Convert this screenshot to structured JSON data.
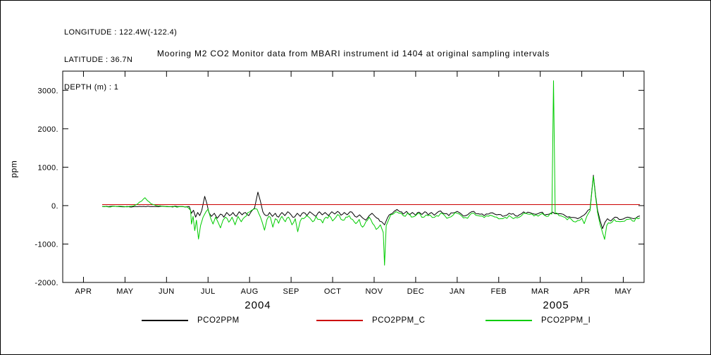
{
  "header": {
    "longitude": "LONGITUDE : 122.4W(-122.4)",
    "latitude": "LATITUDE : 36.7N",
    "depth": "DEPTH (m) : 1"
  },
  "title": "Mooring M2 CO2 Monitor data from MBARI instrument id 1404 at original sampling intervals",
  "chart_data": {
    "type": "line",
    "title": "Mooring M2 CO2 Monitor data from MBARI instrument id 1404 at original sampling intervals",
    "xlabel": "",
    "ylabel": "ppm",
    "ylim": [
      -2000,
      3500
    ],
    "xlim_months": [
      0,
      14
    ],
    "grid": false,
    "axis_color": "#000000",
    "y_ticks": [
      3000,
      2000,
      1000,
      0,
      -1000,
      -2000
    ],
    "y_tick_labels": [
      "3000.",
      "2000.",
      "1000.",
      "0.",
      "-1000.",
      "-2000."
    ],
    "x_tick_labels": [
      "APR",
      "MAY",
      "JUN",
      "JUL",
      "AUG",
      "SEP",
      "OCT",
      "NOV",
      "DEC",
      "JAN",
      "FEB",
      "MAR",
      "APR",
      "MAY"
    ],
    "year_labels": [
      {
        "text": "2004",
        "month_index": 4.7
      },
      {
        "text": "2005",
        "month_index": 11.88
      }
    ],
    "legend_position": "bottom",
    "jitter": {
      "split_t": 3.05,
      "pre_amp": 12,
      "amps": [
        35,
        0,
        50
      ]
    },
    "series": [
      {
        "name": "PCO2PPM",
        "color": "#000000",
        "points": [
          [
            0.95,
            -20
          ],
          [
            1.1,
            -28
          ],
          [
            1.25,
            -18
          ],
          [
            1.4,
            -30
          ],
          [
            1.55,
            -22
          ],
          [
            1.7,
            -30
          ],
          [
            1.85,
            -20
          ],
          [
            2.0,
            -28
          ],
          [
            2.15,
            -22
          ],
          [
            2.3,
            -30
          ],
          [
            2.45,
            -20
          ],
          [
            2.6,
            -28
          ],
          [
            2.75,
            -22
          ],
          [
            2.9,
            -28
          ],
          [
            3.05,
            -25
          ],
          [
            3.1,
            -200
          ],
          [
            3.15,
            -120
          ],
          [
            3.2,
            -300
          ],
          [
            3.25,
            -180
          ],
          [
            3.3,
            -260
          ],
          [
            3.35,
            -120
          ],
          [
            3.42,
            240
          ],
          [
            3.47,
            60
          ],
          [
            3.52,
            -180
          ],
          [
            3.58,
            -280
          ],
          [
            3.65,
            -200
          ],
          [
            3.72,
            -330
          ],
          [
            3.8,
            -220
          ],
          [
            3.88,
            -300
          ],
          [
            3.95,
            -180
          ],
          [
            4.02,
            -260
          ],
          [
            4.1,
            -180
          ],
          [
            4.18,
            -280
          ],
          [
            4.25,
            -160
          ],
          [
            4.32,
            -240
          ],
          [
            4.4,
            -180
          ],
          [
            4.48,
            -260
          ],
          [
            4.55,
            -140
          ],
          [
            4.62,
            -60
          ],
          [
            4.7,
            350
          ],
          [
            4.76,
            120
          ],
          [
            4.82,
            -160
          ],
          [
            4.9,
            -260
          ],
          [
            4.98,
            -180
          ],
          [
            5.05,
            -280
          ],
          [
            5.12,
            -200
          ],
          [
            5.2,
            -300
          ],
          [
            5.28,
            -180
          ],
          [
            5.35,
            -260
          ],
          [
            5.42,
            -160
          ],
          [
            5.5,
            -240
          ],
          [
            5.58,
            -300
          ],
          [
            5.65,
            -200
          ],
          [
            5.72,
            -280
          ],
          [
            5.8,
            -180
          ],
          [
            5.88,
            -260
          ],
          [
            5.95,
            -160
          ],
          [
            6.02,
            -220
          ],
          [
            6.1,
            -280
          ],
          [
            6.18,
            -160
          ],
          [
            6.25,
            -240
          ],
          [
            6.32,
            -180
          ],
          [
            6.4,
            -260
          ],
          [
            6.48,
            -160
          ],
          [
            6.55,
            -220
          ],
          [
            6.62,
            -150
          ],
          [
            6.7,
            -250
          ],
          [
            6.78,
            -180
          ],
          [
            6.85,
            -240
          ],
          [
            6.92,
            -160
          ],
          [
            7.0,
            -220
          ],
          [
            7.08,
            -300
          ],
          [
            7.15,
            -240
          ],
          [
            7.22,
            -320
          ],
          [
            7.3,
            -380
          ],
          [
            7.38,
            -260
          ],
          [
            7.45,
            -200
          ],
          [
            7.52,
            -280
          ],
          [
            7.6,
            -340
          ],
          [
            7.68,
            -420
          ],
          [
            7.75,
            -500
          ],
          [
            7.82,
            -320
          ],
          [
            7.9,
            -220
          ],
          [
            7.98,
            -150
          ],
          [
            8.05,
            -100
          ],
          [
            8.12,
            -160
          ],
          [
            8.2,
            -220
          ],
          [
            8.28,
            -150
          ],
          [
            8.35,
            -240
          ],
          [
            8.42,
            -180
          ],
          [
            8.5,
            -250
          ],
          [
            8.58,
            -170
          ],
          [
            8.65,
            -230
          ],
          [
            8.72,
            -160
          ],
          [
            8.8,
            -240
          ],
          [
            8.88,
            -180
          ],
          [
            8.95,
            -250
          ],
          [
            9.02,
            -180
          ],
          [
            9.1,
            -140
          ],
          [
            9.2,
            -210
          ],
          [
            9.3,
            -260
          ],
          [
            9.4,
            -190
          ],
          [
            9.5,
            -150
          ],
          [
            9.6,
            -220
          ],
          [
            9.7,
            -260
          ],
          [
            9.8,
            -190
          ],
          [
            9.9,
            -150
          ],
          [
            10.0,
            -210
          ],
          [
            10.15,
            -260
          ],
          [
            10.3,
            -190
          ],
          [
            10.45,
            -240
          ],
          [
            10.6,
            -280
          ],
          [
            10.75,
            -200
          ],
          [
            10.9,
            -260
          ],
          [
            11.05,
            -210
          ],
          [
            11.2,
            -170
          ],
          [
            11.35,
            -220
          ],
          [
            11.5,
            -180
          ],
          [
            11.65,
            -230
          ],
          [
            11.8,
            -170
          ],
          [
            11.95,
            -210
          ],
          [
            12.1,
            -260
          ],
          [
            12.25,
            -310
          ],
          [
            12.4,
            -340
          ],
          [
            12.5,
            -280
          ],
          [
            12.6,
            -200
          ],
          [
            12.7,
            -90
          ],
          [
            12.78,
            790
          ],
          [
            12.83,
            280
          ],
          [
            12.88,
            -120
          ],
          [
            12.94,
            -380
          ],
          [
            13.0,
            -600
          ],
          [
            13.06,
            -430
          ],
          [
            13.12,
            -340
          ],
          [
            13.2,
            -400
          ],
          [
            13.3,
            -300
          ],
          [
            13.45,
            -360
          ],
          [
            13.6,
            -300
          ],
          [
            13.75,
            -340
          ],
          [
            13.9,
            -270
          ]
        ]
      },
      {
        "name": "PCO2PPM_C",
        "color": "#cc0000",
        "points": [
          [
            0.95,
            25
          ],
          [
            13.9,
            25
          ]
        ]
      },
      {
        "name": "PCO2PPM_I",
        "color": "#00cc00",
        "points": [
          [
            0.95,
            -25
          ],
          [
            1.1,
            -32
          ],
          [
            1.3,
            -25
          ],
          [
            1.5,
            -28
          ],
          [
            1.65,
            -15
          ],
          [
            1.8,
            40
          ],
          [
            1.9,
            120
          ],
          [
            1.98,
            205
          ],
          [
            2.04,
            130
          ],
          [
            2.12,
            55
          ],
          [
            2.25,
            0
          ],
          [
            2.4,
            -20
          ],
          [
            2.6,
            -28
          ],
          [
            2.8,
            -30
          ],
          [
            3.0,
            -35
          ],
          [
            3.08,
            -120
          ],
          [
            3.1,
            -480
          ],
          [
            3.14,
            -280
          ],
          [
            3.18,
            -650
          ],
          [
            3.22,
            -380
          ],
          [
            3.27,
            -870
          ],
          [
            3.32,
            -520
          ],
          [
            3.38,
            -300
          ],
          [
            3.45,
            -160
          ],
          [
            3.5,
            -90
          ],
          [
            3.56,
            -320
          ],
          [
            3.62,
            -480
          ],
          [
            3.68,
            -300
          ],
          [
            3.74,
            -430
          ],
          [
            3.8,
            -580
          ],
          [
            3.86,
            -380
          ],
          [
            3.92,
            -300
          ],
          [
            4.0,
            -430
          ],
          [
            4.08,
            -300
          ],
          [
            4.15,
            -500
          ],
          [
            4.22,
            -280
          ],
          [
            4.3,
            -420
          ],
          [
            4.38,
            -300
          ],
          [
            4.46,
            -180
          ],
          [
            4.55,
            -120
          ],
          [
            4.64,
            -80
          ],
          [
            4.72,
            -200
          ],
          [
            4.8,
            -420
          ],
          [
            4.86,
            -640
          ],
          [
            4.92,
            -360
          ],
          [
            5.0,
            -300
          ],
          [
            5.06,
            -560
          ],
          [
            5.12,
            -340
          ],
          [
            5.2,
            -460
          ],
          [
            5.28,
            -280
          ],
          [
            5.36,
            -420
          ],
          [
            5.44,
            -300
          ],
          [
            5.52,
            -500
          ],
          [
            5.6,
            -340
          ],
          [
            5.66,
            -680
          ],
          [
            5.72,
            -400
          ],
          [
            5.8,
            -340
          ],
          [
            5.88,
            -260
          ],
          [
            5.95,
            -320
          ],
          [
            6.02,
            -420
          ],
          [
            6.1,
            -280
          ],
          [
            6.18,
            -360
          ],
          [
            6.26,
            -450
          ],
          [
            6.34,
            -300
          ],
          [
            6.42,
            -260
          ],
          [
            6.5,
            -400
          ],
          [
            6.58,
            -300
          ],
          [
            6.66,
            -260
          ],
          [
            6.74,
            -380
          ],
          [
            6.82,
            -300
          ],
          [
            6.9,
            -260
          ],
          [
            6.98,
            -360
          ],
          [
            7.06,
            -470
          ],
          [
            7.14,
            -360
          ],
          [
            7.22,
            -560
          ],
          [
            7.3,
            -420
          ],
          [
            7.38,
            -300
          ],
          [
            7.46,
            -460
          ],
          [
            7.55,
            -620
          ],
          [
            7.65,
            -500
          ],
          [
            7.72,
            -700
          ],
          [
            7.75,
            -1550
          ],
          [
            7.79,
            -520
          ],
          [
            7.86,
            -340
          ],
          [
            7.94,
            -230
          ],
          [
            8.02,
            -160
          ],
          [
            8.1,
            -200
          ],
          [
            8.2,
            -260
          ],
          [
            8.3,
            -200
          ],
          [
            8.4,
            -300
          ],
          [
            8.5,
            -260
          ],
          [
            8.6,
            -210
          ],
          [
            8.7,
            -300
          ],
          [
            8.8,
            -260
          ],
          [
            8.9,
            -310
          ],
          [
            9.0,
            -260
          ],
          [
            9.1,
            -200
          ],
          [
            9.2,
            -260
          ],
          [
            9.3,
            -310
          ],
          [
            9.4,
            -250
          ],
          [
            9.5,
            -200
          ],
          [
            9.6,
            -260
          ],
          [
            9.7,
            -310
          ],
          [
            9.8,
            -250
          ],
          [
            9.9,
            -200
          ],
          [
            10.0,
            -260
          ],
          [
            10.15,
            -310
          ],
          [
            10.3,
            -250
          ],
          [
            10.45,
            -300
          ],
          [
            10.6,
            -340
          ],
          [
            10.75,
            -260
          ],
          [
            10.9,
            -310
          ],
          [
            11.05,
            -260
          ],
          [
            11.2,
            -220
          ],
          [
            11.35,
            -270
          ],
          [
            11.5,
            -230
          ],
          [
            11.65,
            -280
          ],
          [
            11.78,
            -220
          ],
          [
            11.82,
            3250
          ],
          [
            11.86,
            -200
          ],
          [
            11.95,
            -260
          ],
          [
            12.1,
            -310
          ],
          [
            12.25,
            -360
          ],
          [
            12.4,
            -390
          ],
          [
            12.5,
            -330
          ],
          [
            12.56,
            -470
          ],
          [
            12.62,
            -280
          ],
          [
            12.7,
            -130
          ],
          [
            12.78,
            760
          ],
          [
            12.83,
            240
          ],
          [
            12.88,
            -180
          ],
          [
            12.94,
            -480
          ],
          [
            13.0,
            -700
          ],
          [
            13.05,
            -880
          ],
          [
            13.1,
            -520
          ],
          [
            13.18,
            -460
          ],
          [
            13.28,
            -360
          ],
          [
            13.42,
            -420
          ],
          [
            13.58,
            -360
          ],
          [
            13.72,
            -400
          ],
          [
            13.9,
            -320
          ]
        ]
      }
    ]
  }
}
